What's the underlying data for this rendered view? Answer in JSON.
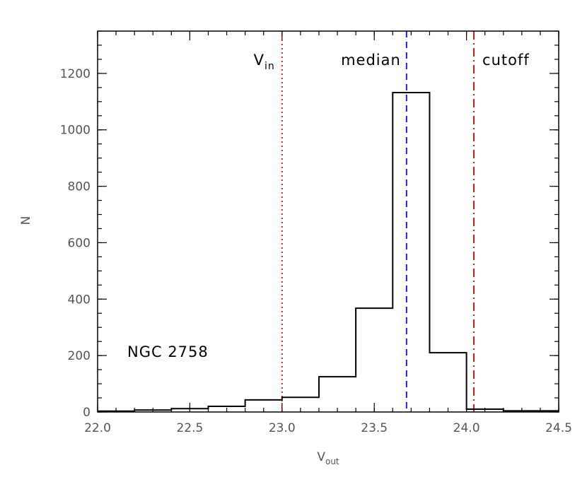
{
  "chart_data": {
    "type": "histogram",
    "title": "",
    "xlabel": {
      "main": "V",
      "sub": "out"
    },
    "ylabel": "N",
    "xlim": [
      22.0,
      24.5
    ],
    "ylim": [
      0,
      1350
    ],
    "x_ticks": [
      22.0,
      22.5,
      23.0,
      23.5,
      24.0,
      24.5
    ],
    "x_tick_labels": [
      "22.0",
      "22.5",
      "23.0",
      "23.5",
      "24.0",
      "24.5"
    ],
    "x_minor_step": 0.1,
    "y_ticks": [
      0,
      200,
      400,
      600,
      800,
      1000,
      1200
    ],
    "y_tick_labels": [
      "0",
      "200",
      "400",
      "600",
      "800",
      "1000",
      "1200"
    ],
    "y_minor_step": 50,
    "bin_edges": [
      22.0,
      22.2,
      22.4,
      22.6,
      22.8,
      23.0,
      23.2,
      23.4,
      23.6,
      23.8,
      24.0,
      24.2,
      24.4,
      24.5
    ],
    "counts": [
      3,
      7,
      12,
      20,
      43,
      52,
      125,
      368,
      1132,
      210,
      10,
      4,
      4
    ],
    "vertical_lines": [
      {
        "label_main": "V",
        "label_sub": "in",
        "x": 23.0,
        "style": "dotted",
        "color": "#e02020"
      },
      {
        "label_main": "median",
        "label_sub": "",
        "x": 23.675,
        "style": "dashed",
        "color": "#2020c8"
      },
      {
        "label_main": "cutoff",
        "label_sub": "",
        "x": 24.04,
        "style": "dashdot",
        "color": "#d01818"
      }
    ],
    "annotation": "NGC 2758",
    "grid": false,
    "colors": {
      "histogram": "#000000",
      "axes": "#000000",
      "text": "#555555"
    }
  }
}
